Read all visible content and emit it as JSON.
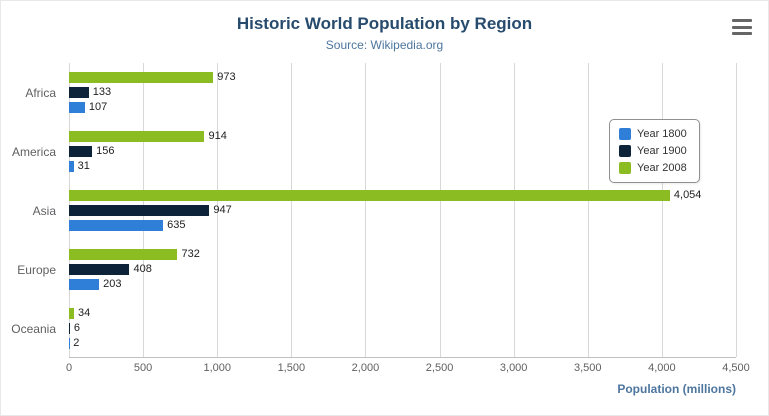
{
  "header": {
    "title": "Historic World Population by Region",
    "subtitle": "Source: Wikipedia.org"
  },
  "menu": {
    "icon": "hamburger-menu-icon"
  },
  "chart_data": {
    "type": "bar",
    "orientation": "horizontal",
    "title": "Historic World Population by Region",
    "subtitle": "Source: Wikipedia.org",
    "categories": [
      "Africa",
      "America",
      "Asia",
      "Europe",
      "Oceania"
    ],
    "series": [
      {
        "name": "Year 1800",
        "color": "#2f7ed8",
        "values": [
          107,
          31,
          635,
          203,
          2
        ]
      },
      {
        "name": "Year 1900",
        "color": "#0d233a",
        "values": [
          133,
          156,
          947,
          408,
          6
        ]
      },
      {
        "name": "Year 2008",
        "color": "#8bbc21",
        "values": [
          973,
          914,
          4054,
          732,
          34
        ]
      }
    ],
    "bar_display_order": [
      "Year 2008",
      "Year 1900",
      "Year 1800"
    ],
    "data_labels": true,
    "xlabel": "Population (millions)",
    "ylabel": "",
    "xlim": [
      0,
      4500
    ],
    "x_ticks": [
      "0",
      "500",
      "1,000",
      "1,500",
      "2,000",
      "2,500",
      "3,000",
      "3,500",
      "4,000",
      "4,500"
    ],
    "grid": true,
    "legend_position": "right"
  }
}
